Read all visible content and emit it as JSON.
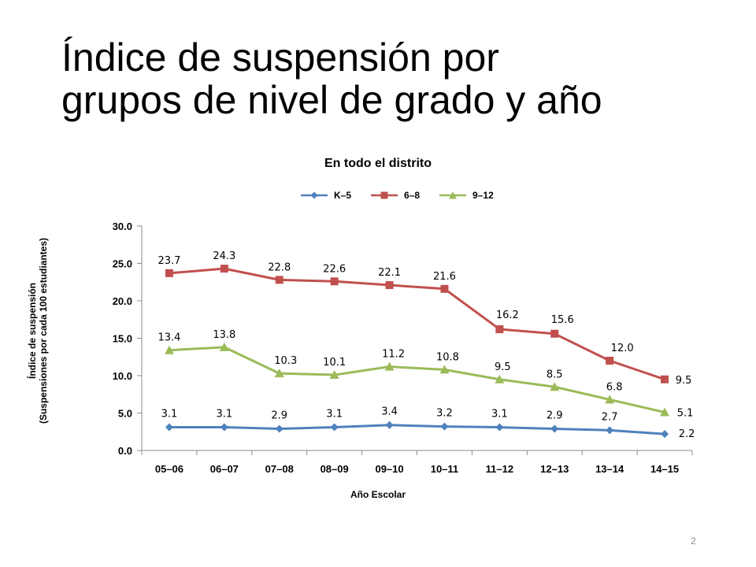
{
  "slide": {
    "title_lines": [
      "Índice de suspensión por",
      "grupos de nivel de grado y año"
    ],
    "page_number": "2"
  },
  "chart_data": {
    "type": "line",
    "title": "En todo el distrito",
    "xlabel": "Año Escolar",
    "ylabel_lines": [
      "Índice de suspensión",
      "(Suspensiones por cada 100 estudiantes)"
    ],
    "categories": [
      "05–06",
      "06–07",
      "07–08",
      "08–09",
      "09–10",
      "10–11",
      "11–12",
      "12–13",
      "13–14",
      "14–15"
    ],
    "ylim": [
      0,
      30
    ],
    "yticks": [
      "0.0",
      "5.0",
      "10.0",
      "15.0",
      "20.0",
      "25.0",
      "30.0"
    ],
    "grid": false,
    "legend_position": "top",
    "series": [
      {
        "name": "K–5",
        "marker": "diamond",
        "color": "#4f81bd",
        "values": [
          3.1,
          3.1,
          2.9,
          3.1,
          3.4,
          3.2,
          3.1,
          2.9,
          2.7,
          2.2
        ],
        "labels": [
          "3.1",
          "3.1",
          "2.9",
          "3.1",
          "3.4",
          "3.2",
          "3.1",
          "2.9",
          "2.7",
          "2.2"
        ]
      },
      {
        "name": "6–8",
        "marker": "square",
        "color": "#c0504d",
        "values": [
          23.7,
          24.3,
          22.8,
          22.6,
          22.1,
          21.6,
          16.2,
          15.6,
          12.0,
          9.5
        ],
        "labels": [
          "23.7",
          "24.3",
          "22.8",
          "22.6",
          "22.1",
          "21.6",
          "16.2",
          "15.6",
          "12.0",
          "9.5"
        ]
      },
      {
        "name": "9–12",
        "marker": "triangle",
        "color": "#9bbb59",
        "values": [
          13.4,
          13.8,
          10.3,
          10.1,
          11.2,
          10.8,
          9.5,
          8.5,
          6.8,
          5.1
        ],
        "labels": [
          "13.4",
          "13.8",
          "10.3",
          "10.1",
          "11.2",
          "10.8",
          "9.5",
          "8.5",
          "6.8",
          "5.1"
        ]
      }
    ]
  }
}
